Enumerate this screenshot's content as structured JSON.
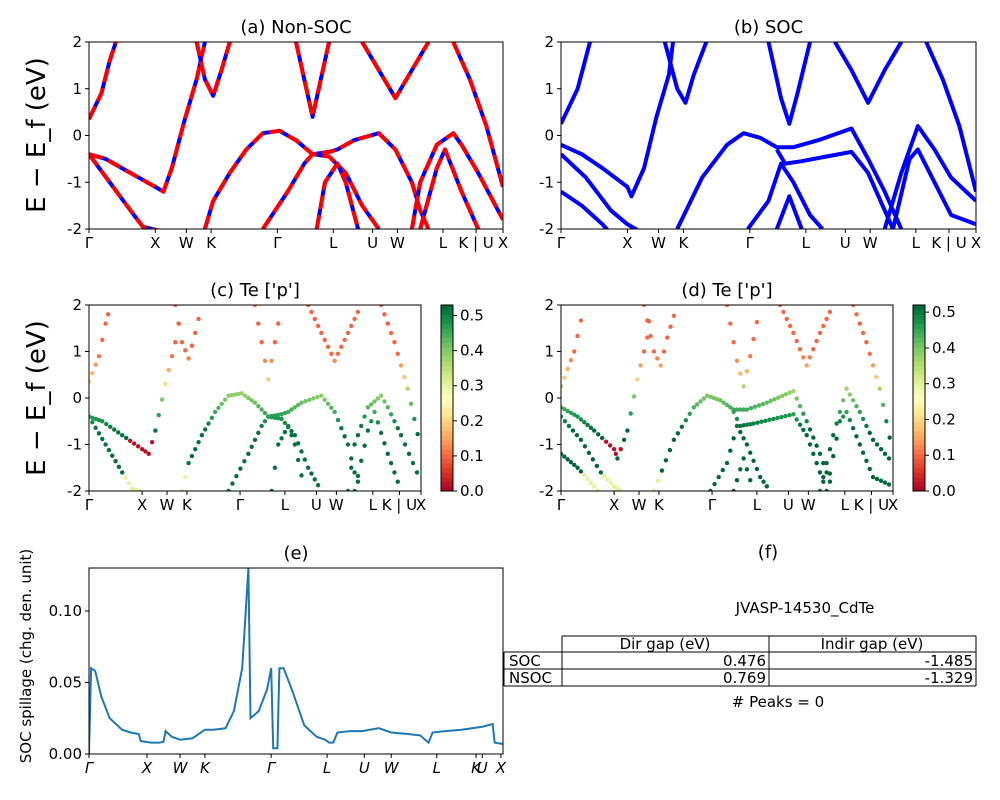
{
  "figure": {
    "ylabel_band": "E − E_f (eV)"
  },
  "kpoint_labels": [
    "Γ",
    "X",
    "W",
    "K",
    "Γ",
    "L",
    "U",
    "W",
    "L",
    "K | U",
    "X"
  ],
  "spillage_kpoint_labels": [
    "Γ",
    "X",
    "W",
    "K",
    "Γ",
    "L",
    "U",
    "W",
    "L",
    "K",
    "U",
    "X"
  ],
  "chart_data": [
    {
      "id": "a",
      "type": "line",
      "title": "(a) Non-SOC",
      "ylabel": "E − E_f (eV)",
      "ylim": [
        -2,
        2
      ],
      "yticks": [
        -2,
        -1,
        0,
        1,
        2
      ],
      "xlim": [
        0,
        1
      ],
      "series": [
        {
          "color": "#ff0000",
          "style": "solid",
          "values": [
            [
              0,
              0.35
            ],
            [
              0.03,
              0.9
            ],
            [
              0.05,
              1.6
            ],
            [
              0.065,
              2
            ]
          ]
        },
        {
          "color": "#ff0000",
          "style": "solid",
          "values": [
            [
              0,
              -0.4
            ],
            [
              0.04,
              -0.5
            ],
            [
              0.1,
              -0.8
            ],
            [
              0.16,
              -1.1
            ],
            [
              0.18,
              -1.2
            ],
            [
              0.2,
              -0.7
            ],
            [
              0.23,
              0.3
            ],
            [
              0.26,
              1.2
            ],
            [
              0.28,
              2
            ]
          ]
        },
        {
          "color": "#ff0000",
          "style": "solid",
          "values": [
            [
              0,
              -0.4
            ],
            [
              0.05,
              -1.0
            ],
            [
              0.1,
              -1.6
            ],
            [
              0.13,
              -1.95
            ],
            [
              0.2,
              -2.1
            ],
            [
              0.4,
              -2.1
            ]
          ]
        },
        {
          "color": "#ff0000",
          "style": "solid",
          "values": [
            [
              0.26,
              2
            ],
            [
              0.28,
              1.2
            ],
            [
              0.3,
              0.85
            ],
            [
              0.32,
              1.4
            ],
            [
              0.34,
              2
            ]
          ]
        },
        {
          "color": "#ff0000",
          "style": "solid",
          "values": [
            [
              0.28,
              -2
            ],
            [
              0.3,
              -1.4
            ],
            [
              0.34,
              -0.8
            ],
            [
              0.38,
              -0.3
            ],
            [
              0.42,
              0.05
            ],
            [
              0.46,
              0.1
            ],
            [
              0.5,
              -0.1
            ],
            [
              0.54,
              -0.4
            ],
            [
              0.58,
              -0.35
            ],
            [
              0.6,
              -0.3
            ],
            [
              0.64,
              -0.1
            ],
            [
              0.7,
              0.05
            ],
            [
              0.74,
              -0.3
            ],
            [
              0.78,
              -1.0
            ],
            [
              0.8,
              -1.6
            ],
            [
              0.82,
              -2
            ]
          ]
        },
        {
          "color": "#ff0000",
          "style": "solid",
          "values": [
            [
              0.5,
              2
            ],
            [
              0.52,
              1.2
            ],
            [
              0.54,
              0.4
            ],
            [
              0.56,
              1.2
            ],
            [
              0.58,
              2
            ]
          ]
        },
        {
          "color": "#ff0000",
          "style": "solid",
          "values": [
            [
              0.42,
              -2
            ],
            [
              0.48,
              -1.2
            ],
            [
              0.52,
              -0.6
            ],
            [
              0.54,
              -0.4
            ],
            [
              0.58,
              -0.45
            ],
            [
              0.62,
              -0.8
            ],
            [
              0.66,
              -1.5
            ],
            [
              0.7,
              -2
            ]
          ]
        },
        {
          "color": "#ff0000",
          "style": "solid",
          "values": [
            [
              0.55,
              -2
            ],
            [
              0.57,
              -1.0
            ],
            [
              0.6,
              -0.6
            ],
            [
              0.62,
              -1.0
            ],
            [
              0.65,
              -2
            ]
          ]
        },
        {
          "color": "#ff0000",
          "style": "solid",
          "values": [
            [
              0.66,
              2
            ],
            [
              0.7,
              1.4
            ],
            [
              0.74,
              0.8
            ],
            [
              0.78,
              1.4
            ],
            [
              0.82,
              2
            ]
          ]
        },
        {
          "color": "#ff0000",
          "style": "solid",
          "values": [
            [
              0.78,
              -2
            ],
            [
              0.8,
              -1.0
            ],
            [
              0.84,
              -0.2
            ],
            [
              0.88,
              0.05
            ],
            [
              0.9,
              -0.2
            ],
            [
              0.94,
              -0.8
            ],
            [
              1.0,
              -1.8
            ]
          ]
        },
        {
          "color": "#ff0000",
          "style": "solid",
          "values": [
            [
              0.8,
              -2
            ],
            [
              0.84,
              -0.7
            ],
            [
              0.86,
              -0.3
            ],
            [
              0.9,
              -1.2
            ],
            [
              0.94,
              -2
            ]
          ]
        },
        {
          "color": "#ff0000",
          "style": "solid",
          "values": [
            [
              0.88,
              2
            ],
            [
              0.92,
              1.2
            ],
            [
              0.96,
              0.2
            ],
            [
              1.0,
              -1.1
            ]
          ]
        }
      ]
    },
    {
      "id": "b",
      "type": "line",
      "title": "(b) SOC",
      "ylim": [
        -2,
        2
      ],
      "yticks": [
        -2,
        -1,
        0,
        1,
        2
      ],
      "xlim": [
        0,
        1
      ],
      "series": [
        {
          "color": "#0000ff",
          "style": "solid",
          "values": [
            [
              0,
              0.25
            ],
            [
              0.04,
              1.0
            ],
            [
              0.07,
              2
            ]
          ]
        },
        {
          "color": "#0000ff",
          "style": "solid",
          "values": [
            [
              0,
              -0.2
            ],
            [
              0.05,
              -0.4
            ],
            [
              0.1,
              -0.7
            ],
            [
              0.16,
              -1.1
            ],
            [
              0.17,
              -1.3
            ],
            [
              0.2,
              -0.7
            ],
            [
              0.23,
              0.4
            ],
            [
              0.26,
              1.3
            ],
            [
              0.27,
              2
            ]
          ]
        },
        {
          "color": "#0000ff",
          "style": "solid",
          "values": [
            [
              0,
              -0.4
            ],
            [
              0.06,
              -0.9
            ],
            [
              0.12,
              -1.6
            ],
            [
              0.16,
              -1.9
            ],
            [
              0.2,
              -2.1
            ]
          ]
        },
        {
          "color": "#0000ff",
          "style": "solid",
          "values": [
            [
              0,
              -1.2
            ],
            [
              0.05,
              -1.5
            ],
            [
              0.1,
              -1.9
            ],
            [
              0.12,
              -2.1
            ]
          ]
        },
        {
          "color": "#0000ff",
          "style": "solid",
          "values": [
            [
              0.25,
              2
            ],
            [
              0.28,
              1.0
            ],
            [
              0.3,
              0.7
            ],
            [
              0.32,
              1.3
            ],
            [
              0.35,
              2
            ]
          ]
        },
        {
          "color": "#0000ff",
          "style": "solid",
          "values": [
            [
              0.28,
              -2
            ],
            [
              0.34,
              -0.9
            ],
            [
              0.4,
              -0.2
            ],
            [
              0.44,
              0.05
            ],
            [
              0.48,
              -0.05
            ],
            [
              0.52,
              -0.25
            ],
            [
              0.56,
              -0.25
            ],
            [
              0.62,
              -0.1
            ],
            [
              0.7,
              0.15
            ],
            [
              0.74,
              -0.5
            ],
            [
              0.78,
              -1.2
            ],
            [
              0.82,
              -2
            ]
          ]
        },
        {
          "color": "#0000ff",
          "style": "solid",
          "values": [
            [
              0.52,
              -0.3
            ],
            [
              0.54,
              -0.6
            ],
            [
              0.58,
              -0.55
            ],
            [
              0.64,
              -0.45
            ],
            [
              0.7,
              -0.35
            ],
            [
              0.74,
              -0.8
            ],
            [
              0.78,
              -1.6
            ],
            [
              0.8,
              -2
            ]
          ]
        },
        {
          "color": "#0000ff",
          "style": "solid",
          "values": [
            [
              0.45,
              -2
            ],
            [
              0.5,
              -1.4
            ],
            [
              0.53,
              -0.6
            ],
            [
              0.56,
              -1.0
            ],
            [
              0.6,
              -1.7
            ],
            [
              0.63,
              -2
            ]
          ]
        },
        {
          "color": "#0000ff",
          "style": "solid",
          "values": [
            [
              0.52,
              -2
            ],
            [
              0.55,
              -1.3
            ],
            [
              0.58,
              -2
            ]
          ]
        },
        {
          "color": "#0000ff",
          "style": "solid",
          "values": [
            [
              0.5,
              2
            ],
            [
              0.53,
              0.8
            ],
            [
              0.55,
              0.25
            ],
            [
              0.57,
              0.9
            ],
            [
              0.6,
              2
            ]
          ]
        },
        {
          "color": "#0000ff",
          "style": "solid",
          "values": [
            [
              0.66,
              2
            ],
            [
              0.7,
              1.4
            ],
            [
              0.74,
              0.7
            ],
            [
              0.78,
              1.4
            ],
            [
              0.82,
              2
            ]
          ]
        },
        {
          "color": "#0000ff",
          "style": "solid",
          "values": [
            [
              0.78,
              -2
            ],
            [
              0.82,
              -0.8
            ],
            [
              0.86,
              0.2
            ],
            [
              0.9,
              -0.3
            ],
            [
              0.94,
              -0.9
            ],
            [
              1.0,
              -1.4
            ]
          ]
        },
        {
          "color": "#0000ff",
          "style": "solid",
          "values": [
            [
              0.8,
              -2
            ],
            [
              0.84,
              -0.5
            ],
            [
              0.86,
              -0.3
            ],
            [
              0.9,
              -1.0
            ],
            [
              0.94,
              -1.7
            ],
            [
              1.0,
              -1.9
            ]
          ]
        },
        {
          "color": "#0000ff",
          "style": "solid",
          "values": [
            [
              0.88,
              2
            ],
            [
              0.92,
              1.2
            ],
            [
              0.96,
              0.2
            ],
            [
              1.0,
              -1.2
            ]
          ]
        }
      ]
    },
    {
      "id": "c",
      "type": "scatter",
      "title": "(c)  Te ['p']",
      "ylabel": "E − E_f (eV)",
      "ylim": [
        -2,
        2
      ],
      "yticks": [
        -2,
        -1,
        0,
        1,
        2
      ],
      "xlim": [
        0,
        1
      ],
      "colorbar": {
        "min": 0.0,
        "max": 0.53,
        "ticks": [
          0.0,
          0.1,
          0.2,
          0.3,
          0.4,
          0.5
        ],
        "colormap": "RdYlGn"
      }
    },
    {
      "id": "d",
      "type": "scatter",
      "title": "(d) Te ['p']",
      "ylim": [
        -2,
        2
      ],
      "yticks": [
        -2,
        -1,
        0,
        1,
        2
      ],
      "xlim": [
        0,
        1
      ],
      "colorbar": {
        "min": 0.0,
        "max": 0.52,
        "ticks": [
          0.0,
          0.1,
          0.2,
          0.3,
          0.4,
          0.5
        ],
        "colormap": "RdYlGn"
      }
    },
    {
      "id": "e",
      "type": "line",
      "title": "(e)",
      "ylabel": "SOC spillage (chg. den. unit)",
      "ylim": [
        0,
        0.13
      ],
      "yticks": [
        0.0,
        0.05,
        0.1
      ],
      "ytick_labels": [
        "0.00",
        "0.05",
        "0.10"
      ],
      "series": [
        {
          "color": "#1f77b4",
          "values": [
            [
              0,
              0
            ],
            [
              0.005,
              0.06
            ],
            [
              0.015,
              0.058
            ],
            [
              0.03,
              0.04
            ],
            [
              0.05,
              0.025
            ],
            [
              0.08,
              0.017
            ],
            [
              0.1,
              0.015
            ],
            [
              0.12,
              0.014
            ],
            [
              0.125,
              0.009
            ],
            [
              0.15,
              0.008
            ],
            [
              0.17,
              0.008
            ],
            [
              0.18,
              0.0085
            ],
            [
              0.185,
              0.016
            ],
            [
              0.2,
              0.012
            ],
            [
              0.22,
              0.01
            ],
            [
              0.25,
              0.011
            ],
            [
              0.28,
              0.017
            ],
            [
              0.3,
              0.017
            ],
            [
              0.33,
              0.018
            ],
            [
              0.35,
              0.03
            ],
            [
              0.37,
              0.06
            ],
            [
              0.385,
              0.13
            ],
            [
              0.39,
              0.025
            ],
            [
              0.41,
              0.03
            ],
            [
              0.43,
              0.045
            ],
            [
              0.44,
              0.06
            ],
            [
              0.445,
              0.004
            ],
            [
              0.455,
              0.004
            ],
            [
              0.46,
              0.06
            ],
            [
              0.47,
              0.06
            ],
            [
              0.49,
              0.045
            ],
            [
              0.52,
              0.02
            ],
            [
              0.55,
              0.012
            ],
            [
              0.57,
              0.01
            ],
            [
              0.58,
              0.008
            ],
            [
              0.59,
              0.008
            ],
            [
              0.6,
              0.015
            ],
            [
              0.63,
              0.016
            ],
            [
              0.66,
              0.016
            ],
            [
              0.7,
              0.018
            ],
            [
              0.73,
              0.015
            ],
            [
              0.77,
              0.014
            ],
            [
              0.8,
              0.013
            ],
            [
              0.82,
              0.008
            ],
            [
              0.83,
              0.015
            ],
            [
              0.86,
              0.016
            ],
            [
              0.9,
              0.017
            ],
            [
              0.95,
              0.019
            ],
            [
              0.975,
              0.021
            ],
            [
              0.98,
              0.008
            ],
            [
              1.0,
              0.007
            ]
          ]
        }
      ]
    }
  ],
  "table": {
    "title": "(f)",
    "caption": "JVASP-14530_CdTe",
    "headers": [
      "",
      "Dir gap (eV)",
      "Indir gap (eV)"
    ],
    "rows": [
      [
        "SOC",
        "0.476",
        "-1.485"
      ],
      [
        "NSOC",
        "0.769",
        "-1.329"
      ]
    ],
    "footer": "# Peaks = 0"
  }
}
